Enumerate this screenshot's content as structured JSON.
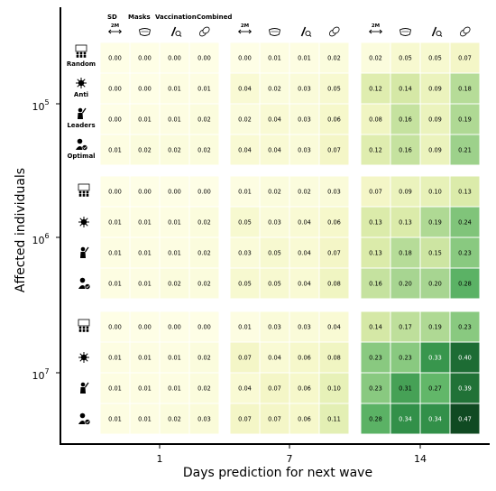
{
  "chart_data": {
    "type": "heatmap",
    "xlabel": "Days prediction for next wave",
    "ylabel": "Affected individuals",
    "x_groups": [
      "1",
      "7",
      "14"
    ],
    "y_groups": [
      {
        "base": "10",
        "exp": "5"
      },
      {
        "base": "10",
        "exp": "6"
      },
      {
        "base": "10",
        "exp": "7"
      }
    ],
    "intervention_headers": [
      "SD",
      "Masks",
      "Vaccination",
      "Combined"
    ],
    "sd_icon_label": "2M",
    "strategy_labels": [
      "Random",
      "Anti",
      "Leaders",
      "Optimal"
    ],
    "value_range": [
      0,
      0.47
    ],
    "colormap": [
      "#fefee6",
      "#f5f7c8",
      "#d9eaa8",
      "#a6d590",
      "#63b86a",
      "#34934a",
      "#1c6a33",
      "#104a22"
    ],
    "values": [
      [
        [
          [
            0.0,
            0.0,
            0.0,
            0.0
          ],
          [
            0.0,
            0.01,
            0.01,
            0.02
          ],
          [
            0.02,
            0.05,
            0.05,
            0.07
          ]
        ],
        [
          [
            0.0,
            0.0,
            0.01,
            0.01
          ],
          [
            0.04,
            0.02,
            0.03,
            0.05
          ],
          [
            0.12,
            0.14,
            0.09,
            0.18
          ]
        ],
        [
          [
            0.0,
            0.01,
            0.01,
            0.02
          ],
          [
            0.02,
            0.04,
            0.03,
            0.06
          ],
          [
            0.08,
            0.16,
            0.09,
            0.19
          ]
        ],
        [
          [
            0.01,
            0.02,
            0.02,
            0.02
          ],
          [
            0.04,
            0.04,
            0.03,
            0.07
          ],
          [
            0.12,
            0.16,
            0.09,
            0.21
          ]
        ]
      ],
      [
        [
          [
            0.0,
            0.0,
            0.0,
            0.0
          ],
          [
            0.01,
            0.02,
            0.02,
            0.03
          ],
          [
            0.07,
            0.09,
            0.1,
            0.13
          ]
        ],
        [
          [
            0.01,
            0.01,
            0.01,
            0.02
          ],
          [
            0.05,
            0.03,
            0.04,
            0.06
          ],
          [
            0.13,
            0.13,
            0.19,
            0.24
          ]
        ],
        [
          [
            0.01,
            0.01,
            0.01,
            0.02
          ],
          [
            0.03,
            0.05,
            0.04,
            0.07
          ],
          [
            0.13,
            0.18,
            0.15,
            0.23
          ]
        ],
        [
          [
            0.01,
            0.01,
            0.02,
            0.02
          ],
          [
            0.05,
            0.05,
            0.04,
            0.08
          ],
          [
            0.16,
            0.2,
            0.2,
            0.28
          ]
        ]
      ],
      [
        [
          [
            0.0,
            0.0,
            0.0,
            0.0
          ],
          [
            0.01,
            0.03,
            0.03,
            0.04
          ],
          [
            0.14,
            0.17,
            0.19,
            0.23
          ]
        ],
        [
          [
            0.01,
            0.01,
            0.01,
            0.02
          ],
          [
            0.07,
            0.04,
            0.06,
            0.08
          ],
          [
            0.23,
            0.23,
            0.33,
            0.4
          ]
        ],
        [
          [
            0.01,
            0.01,
            0.01,
            0.02
          ],
          [
            0.04,
            0.07,
            0.06,
            0.1
          ],
          [
            0.23,
            0.31,
            0.27,
            0.39
          ]
        ],
        [
          [
            0.01,
            0.01,
            0.02,
            0.03
          ],
          [
            0.07,
            0.07,
            0.06,
            0.11
          ],
          [
            0.28,
            0.34,
            0.34,
            0.47
          ]
        ]
      ]
    ]
  }
}
